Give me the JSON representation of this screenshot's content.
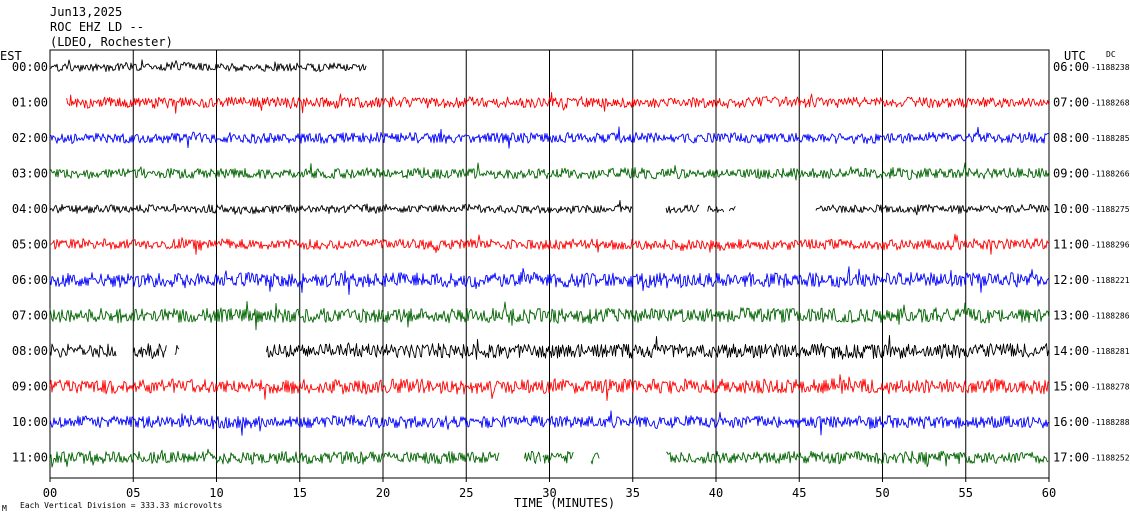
{
  "header": {
    "date": "Jun13,2025",
    "station": "ROC EHZ LD --",
    "network": "(LDEO, Rochester)",
    "left_tz": "EST",
    "right_tz": "UTC",
    "dc_label": "DC"
  },
  "footer": {
    "scale_note": "Each Vertical Division = 333.33 microvolts",
    "mark": "M"
  },
  "chart_data": {
    "type": "line",
    "title": "",
    "xlabel": "TIME (MINUTES)",
    "ylabel": "",
    "xlim": [
      0,
      60
    ],
    "x_ticks": [
      "00",
      "05",
      "10",
      "15",
      "20",
      "25",
      "30",
      "35",
      "40",
      "45",
      "50",
      "55",
      "60"
    ],
    "grid": true,
    "colors": {
      "black": "#000000",
      "red": "#ff0000",
      "blue": "#0000ff",
      "green": "#006400"
    },
    "series": [
      {
        "local": "00:00",
        "utc": "06:00",
        "dc": "-1188238",
        "color": "black",
        "segments": [
          [
            0,
            19
          ]
        ],
        "amplitude": 4
      },
      {
        "local": "01:00",
        "utc": "07:00",
        "dc": "-1188268",
        "color": "red",
        "segments": [
          [
            1,
            60
          ]
        ],
        "amplitude": 5
      },
      {
        "local": "02:00",
        "utc": "08:00",
        "dc": "-1188285",
        "color": "blue",
        "segments": [
          [
            0,
            60
          ]
        ],
        "amplitude": 5
      },
      {
        "local": "03:00",
        "utc": "09:00",
        "dc": "-1188266",
        "color": "green",
        "segments": [
          [
            0,
            60
          ]
        ],
        "amplitude": 5
      },
      {
        "local": "04:00",
        "utc": "10:00",
        "dc": "-1188275",
        "color": "black",
        "segments": [
          [
            0,
            35
          ],
          [
            37,
            39
          ],
          [
            39.5,
            40.5
          ],
          [
            40.8,
            41.2
          ],
          [
            46,
            60
          ]
        ],
        "amplitude": 4
      },
      {
        "local": "05:00",
        "utc": "11:00",
        "dc": "-1188296",
        "color": "red",
        "segments": [
          [
            0,
            60
          ]
        ],
        "amplitude": 5
      },
      {
        "local": "06:00",
        "utc": "12:00",
        "dc": "-1188221",
        "color": "blue",
        "segments": [
          [
            0,
            60
          ]
        ],
        "amplitude": 7
      },
      {
        "local": "07:00",
        "utc": "13:00",
        "dc": "-1188286",
        "color": "green",
        "segments": [
          [
            0,
            60
          ]
        ],
        "amplitude": 7
      },
      {
        "local": "08:00",
        "utc": "14:00",
        "dc": "-1188281",
        "color": "black",
        "segments": [
          [
            0,
            4
          ],
          [
            5,
            7
          ],
          [
            7.5,
            7.8
          ],
          [
            13,
            60
          ]
        ],
        "amplitude": 7
      },
      {
        "local": "09:00",
        "utc": "15:00",
        "dc": "-1188278",
        "color": "red",
        "segments": [
          [
            0,
            60
          ]
        ],
        "amplitude": 7
      },
      {
        "local": "10:00",
        "utc": "16:00",
        "dc": "-1188288",
        "color": "blue",
        "segments": [
          [
            0,
            60
          ]
        ],
        "amplitude": 6
      },
      {
        "local": "11:00",
        "utc": "17:00",
        "dc": "-1188252",
        "color": "green",
        "segments": [
          [
            0,
            27
          ],
          [
            28.5,
            29.5
          ],
          [
            29.6,
            31.5
          ],
          [
            32.5,
            33
          ],
          [
            37,
            60
          ]
        ],
        "amplitude": 6
      }
    ]
  }
}
